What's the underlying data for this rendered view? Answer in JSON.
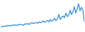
{
  "chart_data": {
    "type": "line",
    "x": [
      0,
      1,
      2,
      3,
      4,
      5,
      6,
      7,
      8,
      9,
      10,
      11,
      12,
      13,
      14,
      15,
      16,
      17,
      18,
      19,
      20,
      21,
      22,
      23,
      24,
      25,
      26,
      27,
      28,
      29,
      30,
      31,
      32,
      33,
      34,
      35,
      36,
      37,
      38,
      39,
      40,
      41,
      42,
      43,
      44,
      45,
      46,
      47,
      48,
      49,
      50,
      51,
      52,
      53,
      54,
      55,
      56,
      57,
      58,
      59
    ],
    "series": [
      {
        "color": "#3a8fd9",
        "values": [
          12,
          14,
          13,
          16,
          15,
          18,
          17,
          15,
          19,
          18,
          20,
          17,
          21,
          19,
          22,
          20,
          18,
          23,
          22,
          24,
          21,
          25,
          27,
          24,
          26,
          28,
          25,
          30,
          27,
          29,
          33,
          28,
          31,
          35,
          30,
          38,
          32,
          36,
          42,
          34,
          40,
          55,
          38,
          45,
          50,
          44,
          60,
          48,
          52,
          70,
          55,
          65,
          82,
          60,
          75,
          92,
          68,
          80,
          70,
          30
        ]
      }
    ],
    "xlim": [
      0,
      59
    ],
    "ylim": [
      0,
      100
    ],
    "tick_labels": false,
    "grid": false
  }
}
